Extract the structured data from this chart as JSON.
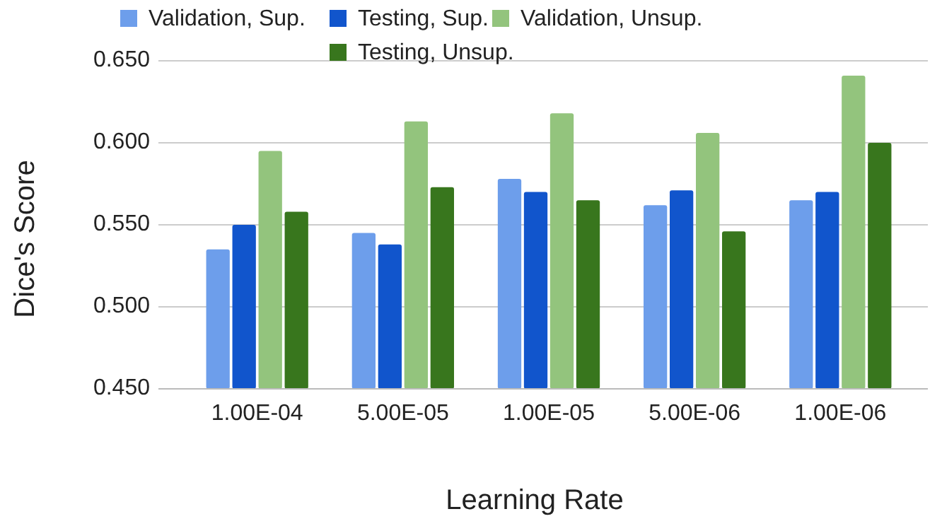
{
  "chart_data": {
    "type": "bar",
    "xlabel": "Learning Rate",
    "ylabel": "Dice's Score",
    "categories": [
      "1.00E-04",
      "5.00E-05",
      "1.00E-05",
      "5.00E-06",
      "1.00E-06"
    ],
    "series": [
      {
        "name": "Validation, Sup.",
        "color": "#6d9eeb",
        "values": [
          0.535,
          0.545,
          0.578,
          0.562,
          0.565
        ]
      },
      {
        "name": "Testing, Sup.",
        "color": "#1155cc",
        "values": [
          0.55,
          0.538,
          0.57,
          0.571,
          0.57
        ]
      },
      {
        "name": "Validation, Unsup.",
        "color": "#93c47d",
        "values": [
          0.595,
          0.613,
          0.618,
          0.606,
          0.641
        ]
      },
      {
        "name": "Testing, Unsup.",
        "color": "#38761d",
        "values": [
          0.558,
          0.573,
          0.565,
          0.546,
          0.6
        ]
      }
    ],
    "ylim": [
      0.45,
      0.65
    ],
    "yticks": [
      {
        "value": 0.45,
        "label": "0.450"
      },
      {
        "value": 0.5,
        "label": "0.500"
      },
      {
        "value": 0.55,
        "label": "0.550"
      },
      {
        "value": 0.6,
        "label": "0.600"
      },
      {
        "value": 0.65,
        "label": "0.650"
      }
    ],
    "grid": "y",
    "legend": "top"
  }
}
